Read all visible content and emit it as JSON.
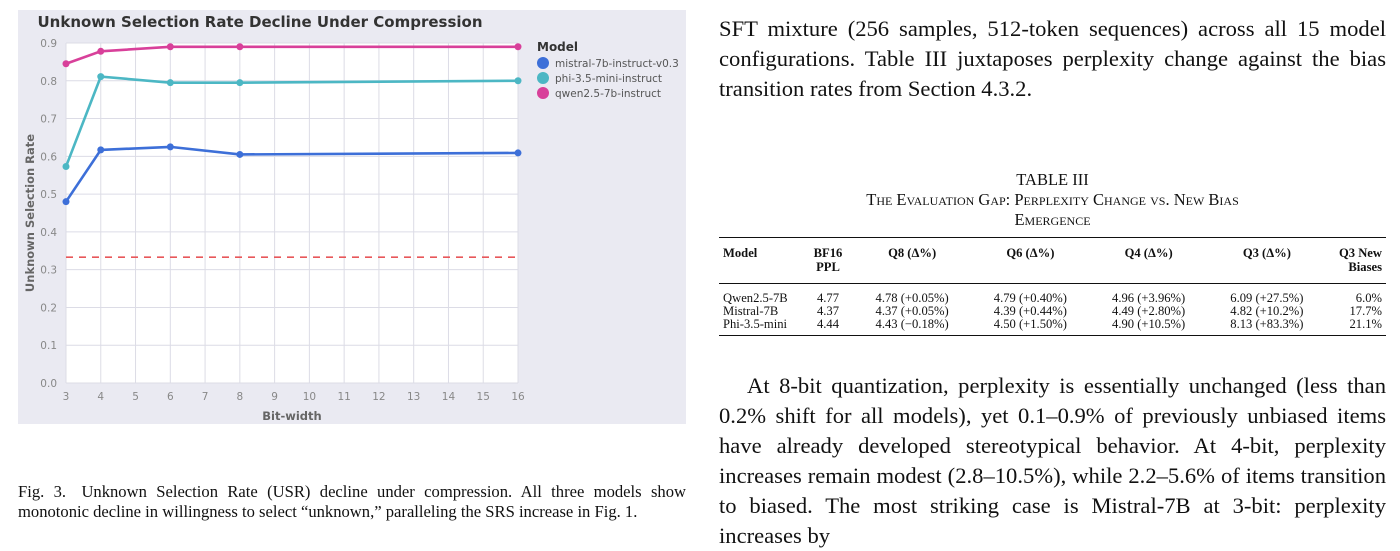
{
  "figure": {
    "caption_label": "Fig. 3.",
    "caption_text": "Unknown Selection Rate (USR) decline under compression. All three models show monotonic decline in willingness to select “unknown,” paralleling the SRS increase in Fig. 1."
  },
  "chart_data": {
    "type": "line",
    "title": "Unknown Selection Rate Decline Under Compression",
    "xlabel": "Bit-width",
    "ylabel": "Unknown Selection Rate",
    "xlim": [
      3,
      16
    ],
    "ylim": [
      0.0,
      0.9
    ],
    "x_ticks": [
      "3",
      "4",
      "5",
      "6",
      "7",
      "8",
      "9",
      "10",
      "11",
      "12",
      "13",
      "14",
      "15",
      "16"
    ],
    "y_ticks": [
      "0.0",
      "0.1",
      "0.2",
      "0.3",
      "0.4",
      "0.5",
      "0.6",
      "0.7",
      "0.8",
      "0.9"
    ],
    "grid": true,
    "legend_title": "Model",
    "legend_position": "right",
    "reference_line": {
      "y": 0.333,
      "color": "#e8575a",
      "style": "dashed"
    },
    "series": [
      {
        "name": "mistral-7b-instruct-v0.3",
        "color": "#3d6fd8",
        "x": [
          3,
          4,
          6,
          8,
          16
        ],
        "y": [
          0.48,
          0.617,
          0.625,
          0.605,
          0.609
        ]
      },
      {
        "name": "phi-3.5-mini-instruct",
        "color": "#4cb7c4",
        "x": [
          3,
          4,
          6,
          8,
          16
        ],
        "y": [
          0.573,
          0.811,
          0.795,
          0.795,
          0.8
        ]
      },
      {
        "name": "qwen2.5-7b-instruct",
        "color": "#d8409a",
        "x": [
          3,
          4,
          6,
          8,
          16
        ],
        "y": [
          0.845,
          0.878,
          0.89,
          0.89,
          0.89
        ]
      }
    ]
  },
  "text": {
    "para1": "SFT mixture (256 samples, 512-token sequences) across all 15 model configurations. Table III juxtaposes perplexity change against the bias transition rates from Section 4.3.2.",
    "para2": "At 8-bit quantization, perplexity is essentially unchanged (less than 0.2% shift for all models), yet 0.1–0.9% of previously unbiased items have already developed stereotypical behavior. At 4-bit, perplexity increases remain modest (2.8–10.5%), while 2.2–5.6% of items transition to biased. The most striking case is Mistral-7B at 3-bit: perplexity increases by"
  },
  "table": {
    "label": "TABLE III",
    "title_line1": "The Evaluation Gap: Perplexity Change vs. New Bias",
    "title_line2": "Emergence",
    "headers": [
      "Model",
      "BF16 PPL",
      "Q8 (Δ%)",
      "Q6 (Δ%)",
      "Q4 (Δ%)",
      "Q3 (Δ%)",
      "Q3 New Biases"
    ],
    "rows": [
      [
        "Qwen2.5-7B",
        "4.77",
        "4.78 (+0.05%)",
        "4.79 (+0.40%)",
        "4.96 (+3.96%)",
        "6.09 (+27.5%)",
        "6.0%"
      ],
      [
        "Mistral-7B",
        "4.37",
        "4.37 (+0.05%)",
        "4.39 (+0.44%)",
        "4.49 (+2.80%)",
        "4.82 (+10.2%)",
        "17.7%"
      ],
      [
        "Phi-3.5-mini",
        "4.44",
        "4.43 (−0.18%)",
        "4.50 (+1.50%)",
        "4.90 (+10.5%)",
        "8.13 (+83.3%)",
        "21.1%"
      ]
    ]
  }
}
